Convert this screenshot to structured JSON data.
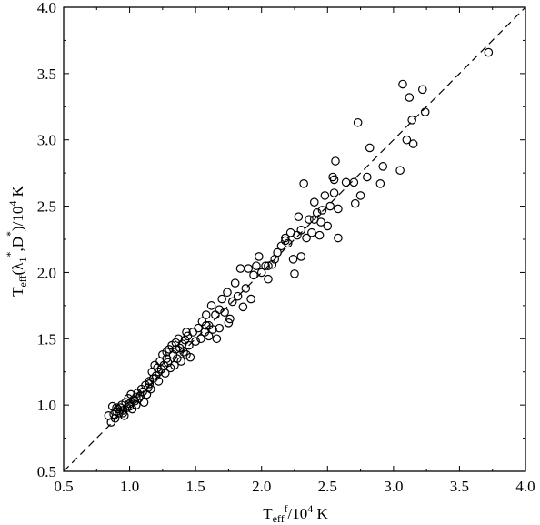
{
  "chart_data": {
    "type": "scatter",
    "xlabel": {
      "main": "T",
      "sub": "eff",
      "sup": "f",
      "rest": "/10",
      "sup2": "4",
      "unit": " K"
    },
    "ylabel": {
      "main": "T",
      "sub": "eff",
      "p1": "(λ",
      "sub2": "1",
      "sup": "*",
      "p2": ",D",
      "sup2": "*",
      "p3": ")/10",
      "sup3": "4",
      "unit": " K"
    },
    "xlim": [
      0.5,
      4.0
    ],
    "ylim": [
      0.5,
      4.0
    ],
    "xticks": [
      "0.5",
      "1.0",
      "1.5",
      "2.0",
      "2.5",
      "3.0",
      "3.5",
      "4.0"
    ],
    "yticks": [
      "0.5",
      "1.0",
      "1.5",
      "2.0",
      "2.5",
      "3.0",
      "3.5",
      "4.0"
    ],
    "reference_line": {
      "style": "dashed",
      "from": [
        0.5,
        0.5
      ],
      "to": [
        4.0,
        4.0
      ]
    },
    "grid": false,
    "legend": "none",
    "marker": "open-circle",
    "points": [
      [
        0.84,
        0.92
      ],
      [
        0.86,
        0.87
      ],
      [
        0.87,
        0.99
      ],
      [
        0.88,
        0.93
      ],
      [
        0.89,
        0.9
      ],
      [
        0.9,
        0.95
      ],
      [
        0.91,
        0.97
      ],
      [
        0.92,
        0.94
      ],
      [
        0.93,
        0.98
      ],
      [
        0.94,
        1.0
      ],
      [
        0.95,
        0.96
      ],
      [
        0.96,
        0.92
      ],
      [
        0.97,
        1.02
      ],
      [
        0.98,
        0.98
      ],
      [
        0.99,
        1.05
      ],
      [
        1.0,
        0.99
      ],
      [
        1.01,
        1.08
      ],
      [
        1.02,
        0.97
      ],
      [
        1.03,
        1.04
      ],
      [
        1.04,
        1.03
      ],
      [
        1.05,
        1.0
      ],
      [
        1.06,
        1.09
      ],
      [
        1.07,
        1.05
      ],
      [
        1.08,
        1.07
      ],
      [
        1.09,
        1.12
      ],
      [
        1.1,
        1.1
      ],
      [
        1.11,
        1.02
      ],
      [
        1.12,
        1.15
      ],
      [
        1.13,
        1.08
      ],
      [
        1.14,
        1.13
      ],
      [
        1.15,
        1.18
      ],
      [
        1.16,
        1.12
      ],
      [
        1.17,
        1.25
      ],
      [
        1.18,
        1.2
      ],
      [
        1.19,
        1.3
      ],
      [
        1.2,
        1.22
      ],
      [
        1.21,
        1.28
      ],
      [
        1.22,
        1.25
      ],
      [
        1.23,
        1.33
      ],
      [
        1.24,
        1.27
      ],
      [
        1.25,
        1.38
      ],
      [
        1.26,
        1.3
      ],
      [
        1.27,
        1.24
      ],
      [
        1.28,
        1.35
      ],
      [
        1.29,
        1.32
      ],
      [
        1.3,
        1.42
      ],
      [
        1.31,
        1.28
      ],
      [
        1.32,
        1.45
      ],
      [
        1.33,
        1.38
      ],
      [
        1.34,
        1.3
      ],
      [
        1.35,
        1.42
      ],
      [
        1.36,
        1.35
      ],
      [
        1.37,
        1.5
      ],
      [
        1.38,
        1.43
      ],
      [
        1.39,
        1.33
      ],
      [
        1.4,
        1.46
      ],
      [
        1.41,
        1.4
      ],
      [
        1.42,
        1.49
      ],
      [
        1.43,
        1.38
      ],
      [
        1.44,
        1.52
      ],
      [
        1.45,
        1.45
      ],
      [
        1.46,
        1.36
      ],
      [
        1.48,
        1.55
      ],
      [
        1.5,
        1.48
      ],
      [
        1.52,
        1.58
      ],
      [
        1.54,
        1.5
      ],
      [
        1.55,
        1.63
      ],
      [
        1.57,
        1.55
      ],
      [
        1.58,
        1.68
      ],
      [
        1.6,
        1.6
      ],
      [
        1.62,
        1.75
      ],
      [
        1.63,
        1.57
      ],
      [
        1.65,
        1.68
      ],
      [
        1.66,
        1.5
      ],
      [
        1.68,
        1.72
      ],
      [
        1.7,
        1.8
      ],
      [
        1.72,
        1.7
      ],
      [
        1.74,
        1.85
      ],
      [
        1.76,
        1.65
      ],
      [
        1.78,
        1.78
      ],
      [
        1.8,
        1.92
      ],
      [
        1.82,
        1.82
      ],
      [
        1.84,
        2.03
      ],
      [
        1.86,
        1.74
      ],
      [
        1.88,
        1.88
      ],
      [
        1.9,
        2.03
      ],
      [
        1.92,
        1.8
      ],
      [
        1.94,
        1.98
      ],
      [
        1.96,
        2.05
      ],
      [
        1.98,
        2.12
      ],
      [
        2.0,
        2.0
      ],
      [
        2.03,
        2.05
      ],
      [
        2.05,
        1.95
      ],
      [
        2.08,
        2.06
      ],
      [
        2.1,
        2.1
      ],
      [
        2.12,
        2.15
      ],
      [
        2.15,
        2.2
      ],
      [
        2.18,
        2.26
      ],
      [
        2.2,
        2.22
      ],
      [
        2.22,
        2.3
      ],
      [
        2.24,
        2.1
      ],
      [
        2.25,
        1.99
      ],
      [
        2.27,
        2.28
      ],
      [
        2.28,
        2.42
      ],
      [
        2.3,
        2.32
      ],
      [
        2.32,
        2.67
      ],
      [
        2.34,
        2.26
      ],
      [
        2.36,
        2.4
      ],
      [
        2.38,
        2.3
      ],
      [
        2.4,
        2.53
      ],
      [
        2.42,
        2.45
      ],
      [
        2.44,
        2.28
      ],
      [
        2.45,
        2.38
      ],
      [
        2.46,
        2.47
      ],
      [
        2.48,
        2.58
      ],
      [
        2.5,
        2.35
      ],
      [
        2.52,
        2.5
      ],
      [
        2.54,
        2.72
      ],
      [
        2.55,
        2.6
      ],
      [
        2.56,
        2.84
      ],
      [
        2.58,
        2.48
      ],
      [
        2.7,
        2.68
      ],
      [
        2.71,
        2.52
      ],
      [
        2.73,
        3.13
      ],
      [
        2.75,
        2.58
      ],
      [
        2.8,
        2.72
      ],
      [
        2.82,
        2.94
      ],
      [
        2.9,
        2.67
      ],
      [
        2.92,
        2.8
      ],
      [
        3.05,
        2.77
      ],
      [
        3.07,
        3.42
      ],
      [
        3.1,
        3.0
      ],
      [
        3.12,
        3.32
      ],
      [
        3.14,
        3.15
      ],
      [
        3.15,
        2.97
      ],
      [
        3.22,
        3.38
      ],
      [
        3.24,
        3.21
      ],
      [
        3.72,
        3.66
      ],
      [
        0.9,
        0.98
      ],
      [
        0.95,
        0.94
      ],
      [
        1.0,
        1.01
      ],
      [
        1.05,
        1.06
      ],
      [
        1.15,
        1.16
      ],
      [
        1.22,
        1.18
      ],
      [
        1.28,
        1.4
      ],
      [
        1.35,
        1.47
      ],
      [
        1.43,
        1.55
      ],
      [
        1.58,
        1.6
      ],
      [
        1.6,
        1.52
      ],
      [
        1.68,
        1.58
      ],
      [
        1.75,
        1.62
      ],
      [
        2.05,
        2.05
      ],
      [
        2.18,
        2.24
      ],
      [
        2.3,
        2.12
      ],
      [
        2.4,
        2.4
      ],
      [
        2.55,
        2.7
      ],
      [
        2.58,
        2.26
      ],
      [
        2.64,
        2.68
      ]
    ]
  }
}
